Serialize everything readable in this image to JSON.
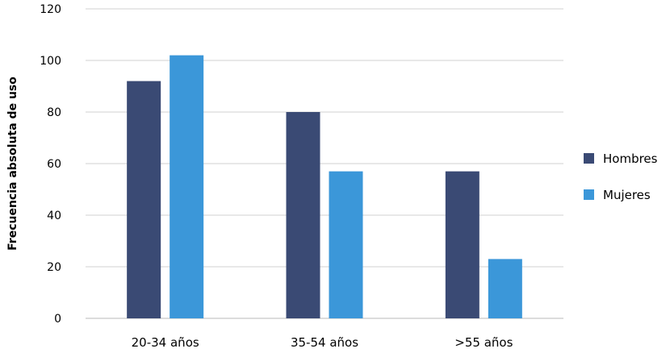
{
  "chart_data": {
    "type": "bar",
    "categories": [
      "20-34 años",
      "35-54 años",
      ">55 años"
    ],
    "series": [
      {
        "name": "Hombres",
        "values": [
          92,
          80,
          57
        ],
        "color": "#3a4a74"
      },
      {
        "name": "Mujeres",
        "values": [
          102,
          57,
          23
        ],
        "color": "#3b97d9"
      }
    ],
    "ylabel": "Frecuencia absoluta de uso",
    "xlabel": "",
    "ylim": [
      0,
      120
    ],
    "yticks": [
      0,
      20,
      40,
      60,
      80,
      100,
      120
    ],
    "grid": true,
    "legend_position": "right"
  }
}
